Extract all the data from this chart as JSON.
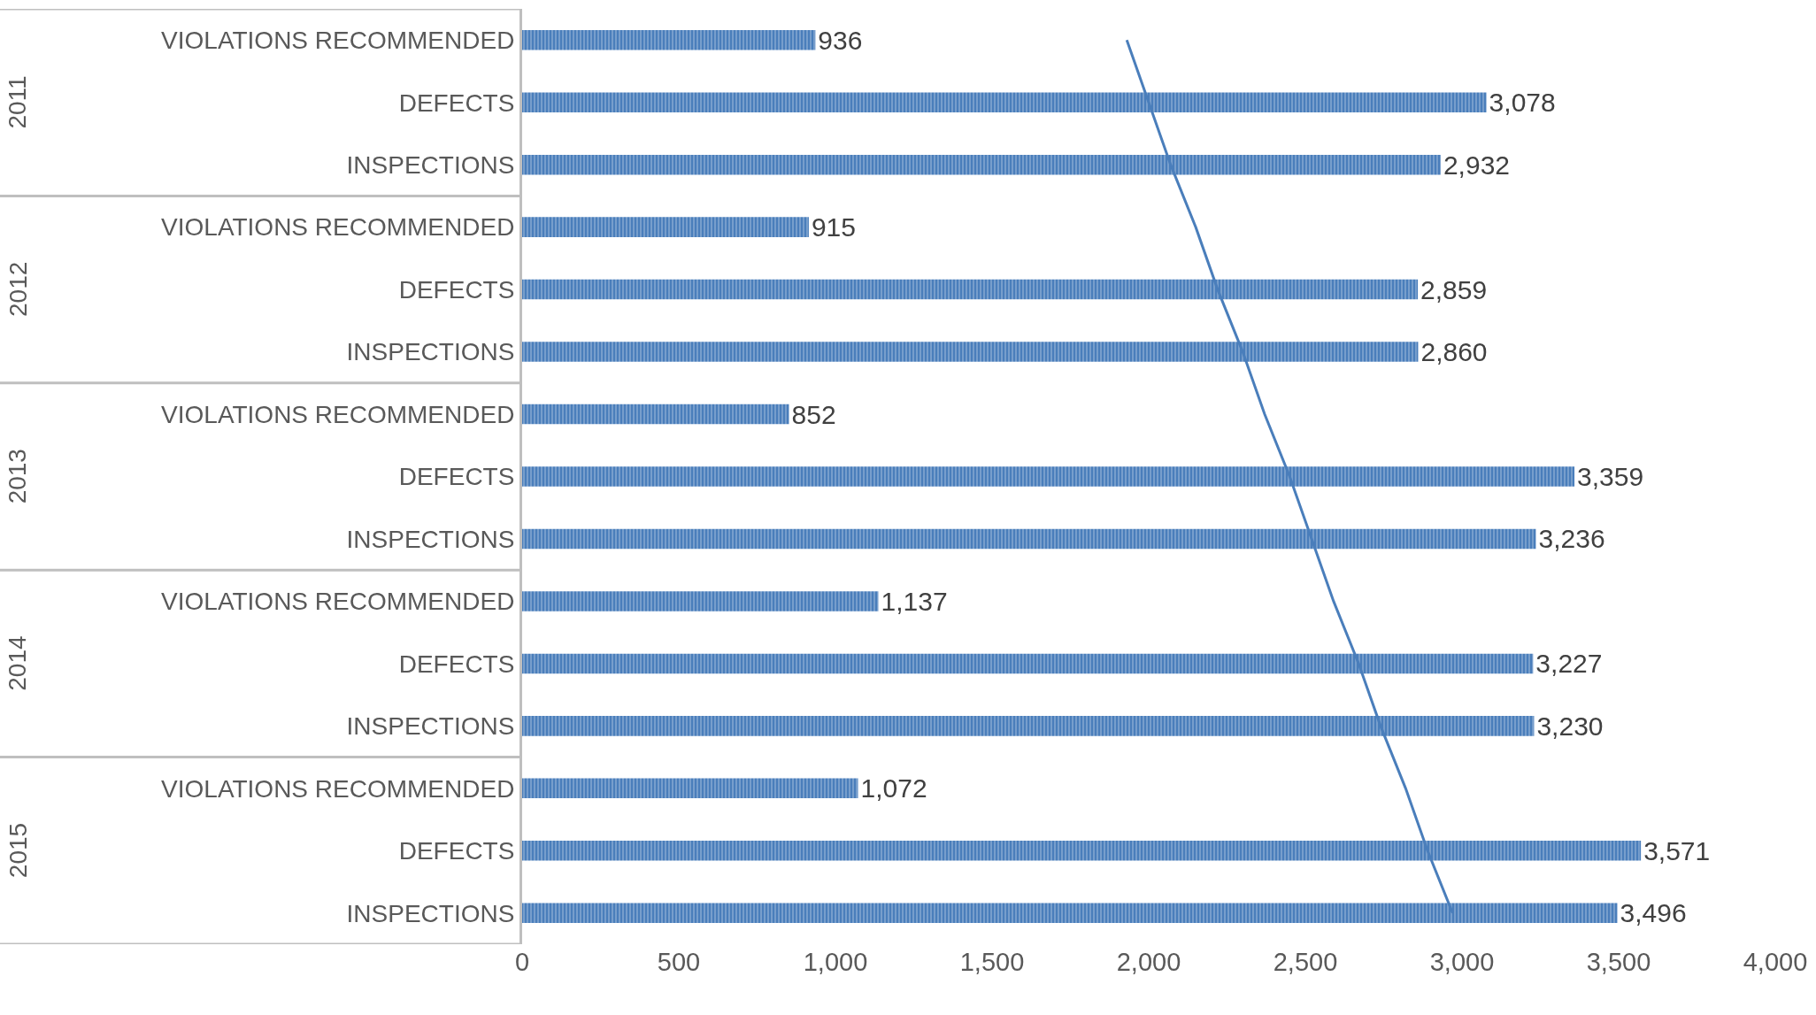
{
  "chart_data": {
    "type": "bar",
    "orientation": "horizontal",
    "categories": [
      "VIOLATIONS RECOMMENDED",
      "DEFECTS",
      "INSPECTIONS",
      "VIOLATIONS RECOMMENDED",
      "DEFECTS",
      "INSPECTIONS",
      "VIOLATIONS RECOMMENDED",
      "DEFECTS",
      "INSPECTIONS",
      "VIOLATIONS RECOMMENDED",
      "DEFECTS",
      "INSPECTIONS",
      "VIOLATIONS RECOMMENDED",
      "DEFECTS",
      "INSPECTIONS"
    ],
    "series": [
      {
        "color": "#4a7ebb",
        "values": [
          936,
          3078,
          2932,
          915,
          2859,
          2860,
          852,
          3359,
          3236,
          1137,
          3227,
          3230,
          1072,
          3571,
          3496
        ],
        "value_labels": [
          "936",
          "3,078",
          "2,932",
          "915",
          "2,859",
          "2,860",
          "852",
          "3,359",
          "3,236",
          "1,137",
          "3,227",
          "3,230",
          "1,072",
          "3,571",
          "3,496"
        ]
      },
      {
        "type": "line",
        "color": "#4a7ebb",
        "values": [
          1930,
          2000,
          2070,
          2150,
          2220,
          2300,
          2370,
          2450,
          2520,
          2590,
          2670,
          2740,
          2820,
          2890,
          2970
        ]
      }
    ],
    "annotations": [
      "2011",
      "2012",
      "2013",
      "2014",
      "2015"
    ],
    "xlim": [
      0,
      4000
    ],
    "xticks": [
      0,
      500,
      {
        "value": 1000,
        "label": "1,000"
      },
      {
        "value": 1500,
        "label": "1,500"
      },
      {
        "value": 2000,
        "label": "2,000"
      },
      {
        "value": 2500,
        "label": "2,500"
      },
      {
        "value": 3000,
        "label": "3,000"
      },
      {
        "value": 3500,
        "label": "3,500"
      },
      {
        "value": 4000,
        "label": "4,000"
      }
    ]
  }
}
